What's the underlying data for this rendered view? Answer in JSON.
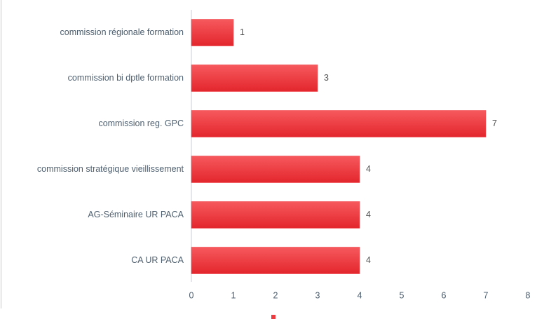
{
  "chart_data": {
    "type": "bar",
    "orientation": "horizontal",
    "categories": [
      "commission régionale formation",
      "commission bi dptle formation",
      "commission reg. GPC",
      "commission stratégique vieillissement",
      "AG-Séminaire UR PACA",
      "CA UR PACA"
    ],
    "values": [
      1,
      3,
      7,
      4,
      4,
      4
    ],
    "color": "#ef3a40",
    "xlim": [
      0,
      8
    ],
    "xticks": [
      0,
      1,
      2,
      3,
      4,
      5,
      6,
      7,
      8
    ],
    "grid": false
  }
}
